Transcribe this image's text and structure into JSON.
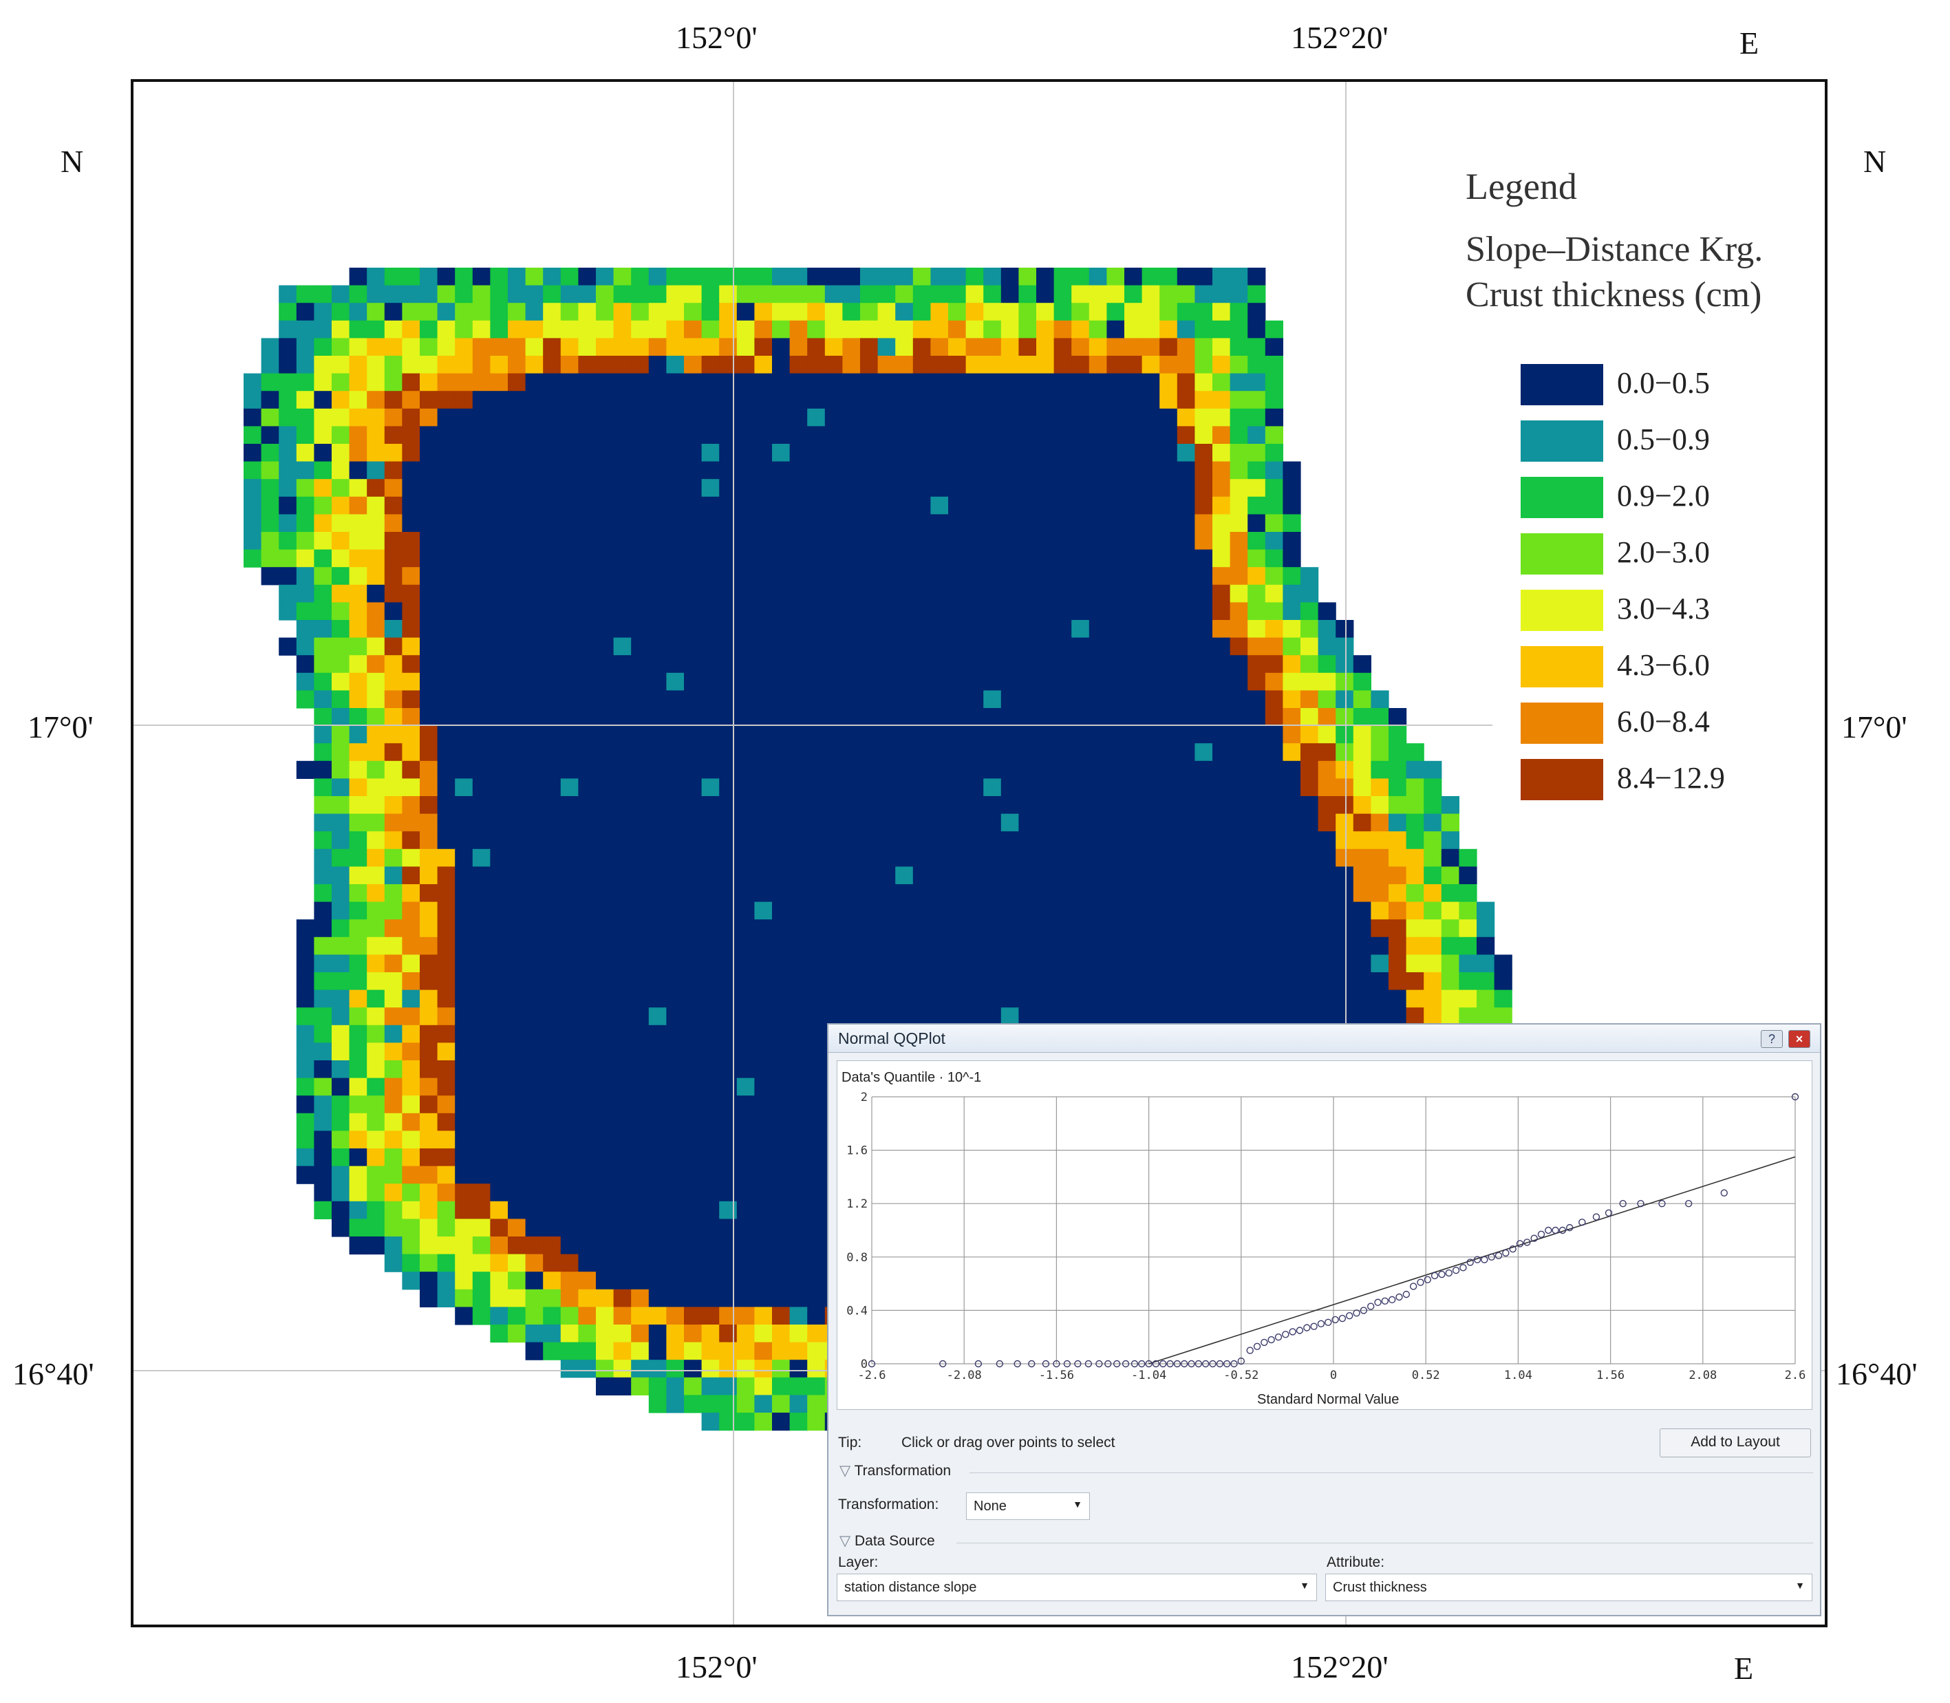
{
  "map": {
    "top_longitudes": [
      "152°0'",
      "152°20'"
    ],
    "bottom_longitudes": [
      "152°0'",
      "152°20'"
    ],
    "east_label": "E",
    "north_label": "N",
    "left_latitudes": [
      "17°0'",
      "16°40'"
    ],
    "right_latitudes": [
      "17°0'",
      "16°40'"
    ]
  },
  "legend": {
    "title": "Legend",
    "subtitle_line1": "Slope–Distance Krg.",
    "subtitle_line2": "Crust thickness (cm)",
    "classes": [
      {
        "label": "0.0−0.5",
        "color": "#00246e"
      },
      {
        "label": "0.5−0.9",
        "color": "#10939c"
      },
      {
        "label": "0.9−2.0",
        "color": "#14c442"
      },
      {
        "label": "2.0−3.0",
        "color": "#6fe21c"
      },
      {
        "label": "3.0−4.3",
        "color": "#e4f51b"
      },
      {
        "label": "4.3−6.0",
        "color": "#fbc200"
      },
      {
        "label": "6.0−8.4",
        "color": "#eb8400"
      },
      {
        "label": "8.4−12.9",
        "color": "#a83700"
      }
    ]
  },
  "qq_window": {
    "title": "Normal QQPlot",
    "help_icon": "?",
    "close_icon": "×",
    "tip_label": "Tip:",
    "tip_text": "Click or drag over points to select",
    "add_to_layout": "Add to Layout",
    "transformation_section": "Transformation",
    "transformation_label": "Transformation:",
    "transformation_value": "None",
    "data_source_section": "Data Source",
    "layer_label": "Layer:",
    "layer_value": "station  distance slope",
    "attribute_label": "Attribute:",
    "attribute_value": "Crust thickness"
  },
  "chart_data": {
    "type": "scatter",
    "title": "",
    "ylabel": "Data's Quantile · 10^-1",
    "xlabel": "Standard Normal Value",
    "x_ticks": [
      "-2.6",
      "-2.08",
      "-1.56",
      "-1.04",
      "-0.52",
      "0",
      "0.52",
      "1.04",
      "1.56",
      "2.08",
      "2.6"
    ],
    "y_ticks": [
      "0",
      "0.4",
      "0.8",
      "1.2",
      "1.6",
      "2"
    ],
    "xlim": [
      -2.6,
      2.6
    ],
    "ylim": [
      0,
      2
    ],
    "grid": true,
    "reference_line": {
      "x": [
        -1.04,
        2.6
      ],
      "y": [
        0.0,
        1.55
      ]
    },
    "points": {
      "x": [
        -2.6,
        -2.2,
        -2.0,
        -1.88,
        -1.78,
        -1.7,
        -1.62,
        -1.56,
        -1.5,
        -1.44,
        -1.38,
        -1.32,
        -1.27,
        -1.22,
        -1.17,
        -1.12,
        -1.08,
        -1.04,
        -1.0,
        -0.96,
        -0.92,
        -0.88,
        -0.84,
        -0.8,
        -0.76,
        -0.72,
        -0.68,
        -0.64,
        -0.6,
        -0.56,
        -0.52,
        -0.47,
        -0.43,
        -0.39,
        -0.35,
        -0.31,
        -0.27,
        -0.23,
        -0.19,
        -0.15,
        -0.11,
        -0.07,
        -0.03,
        0.01,
        0.05,
        0.09,
        0.13,
        0.17,
        0.21,
        0.25,
        0.29,
        0.33,
        0.37,
        0.41,
        0.45,
        0.49,
        0.53,
        0.57,
        0.61,
        0.65,
        0.69,
        0.73,
        0.77,
        0.81,
        0.85,
        0.89,
        0.93,
        0.97,
        1.01,
        1.05,
        1.09,
        1.13,
        1.17,
        1.21,
        1.25,
        1.29,
        1.33,
        1.4,
        1.48,
        1.55,
        1.63,
        1.73,
        1.85,
        2.0,
        2.2,
        2.6
      ],
      "y": [
        0.0,
        0.0,
        0.0,
        0.0,
        0.0,
        0.0,
        0.0,
        0.0,
        0.0,
        0.0,
        0.0,
        0.0,
        0.0,
        0.0,
        0.0,
        0.0,
        0.0,
        0.0,
        0.0,
        0.0,
        0.0,
        0.0,
        0.0,
        0.0,
        0.0,
        0.0,
        0.0,
        0.0,
        0.0,
        0.0,
        0.02,
        0.1,
        0.13,
        0.16,
        0.18,
        0.2,
        0.22,
        0.24,
        0.25,
        0.27,
        0.28,
        0.3,
        0.31,
        0.33,
        0.34,
        0.36,
        0.38,
        0.4,
        0.43,
        0.46,
        0.47,
        0.48,
        0.5,
        0.52,
        0.58,
        0.61,
        0.63,
        0.66,
        0.67,
        0.68,
        0.7,
        0.72,
        0.76,
        0.78,
        0.78,
        0.8,
        0.81,
        0.83,
        0.86,
        0.9,
        0.91,
        0.94,
        0.97,
        1.0,
        1.0,
        1.0,
        1.02,
        1.06,
        1.1,
        1.13,
        1.2,
        1.2,
        1.2,
        1.2,
        1.28,
        2.0
      ]
    }
  }
}
